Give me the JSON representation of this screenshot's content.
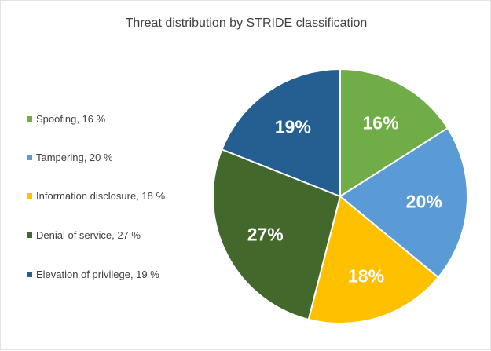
{
  "chart_data": {
    "type": "pie",
    "title": "Threat distribution by STRIDE classification",
    "slices": [
      {
        "name": "Spoofing",
        "legend_label": "Spoofing, 16 %",
        "value": 16,
        "data_label": "16%",
        "color": "#70ad47"
      },
      {
        "name": "Tampering",
        "legend_label": "Tampering, 20 %",
        "value": 20,
        "data_label": "20%",
        "color": "#5b9bd5"
      },
      {
        "name": "Information disclosure",
        "legend_label": "Information disclosure, 18 %",
        "value": 18,
        "data_label": "18%",
        "color": "#ffc000"
      },
      {
        "name": "Denial of service",
        "legend_label": "Denial of service, 27 %",
        "value": 27,
        "data_label": "27%",
        "color": "#43682b"
      },
      {
        "name": "Elevation of privilege",
        "legend_label": "Elevation of privilege, 19 %",
        "value": 19,
        "data_label": "19%",
        "color": "#255e91"
      }
    ],
    "legend_position": "left",
    "start_angle": "12 o'clock",
    "direction": "clockwise"
  }
}
